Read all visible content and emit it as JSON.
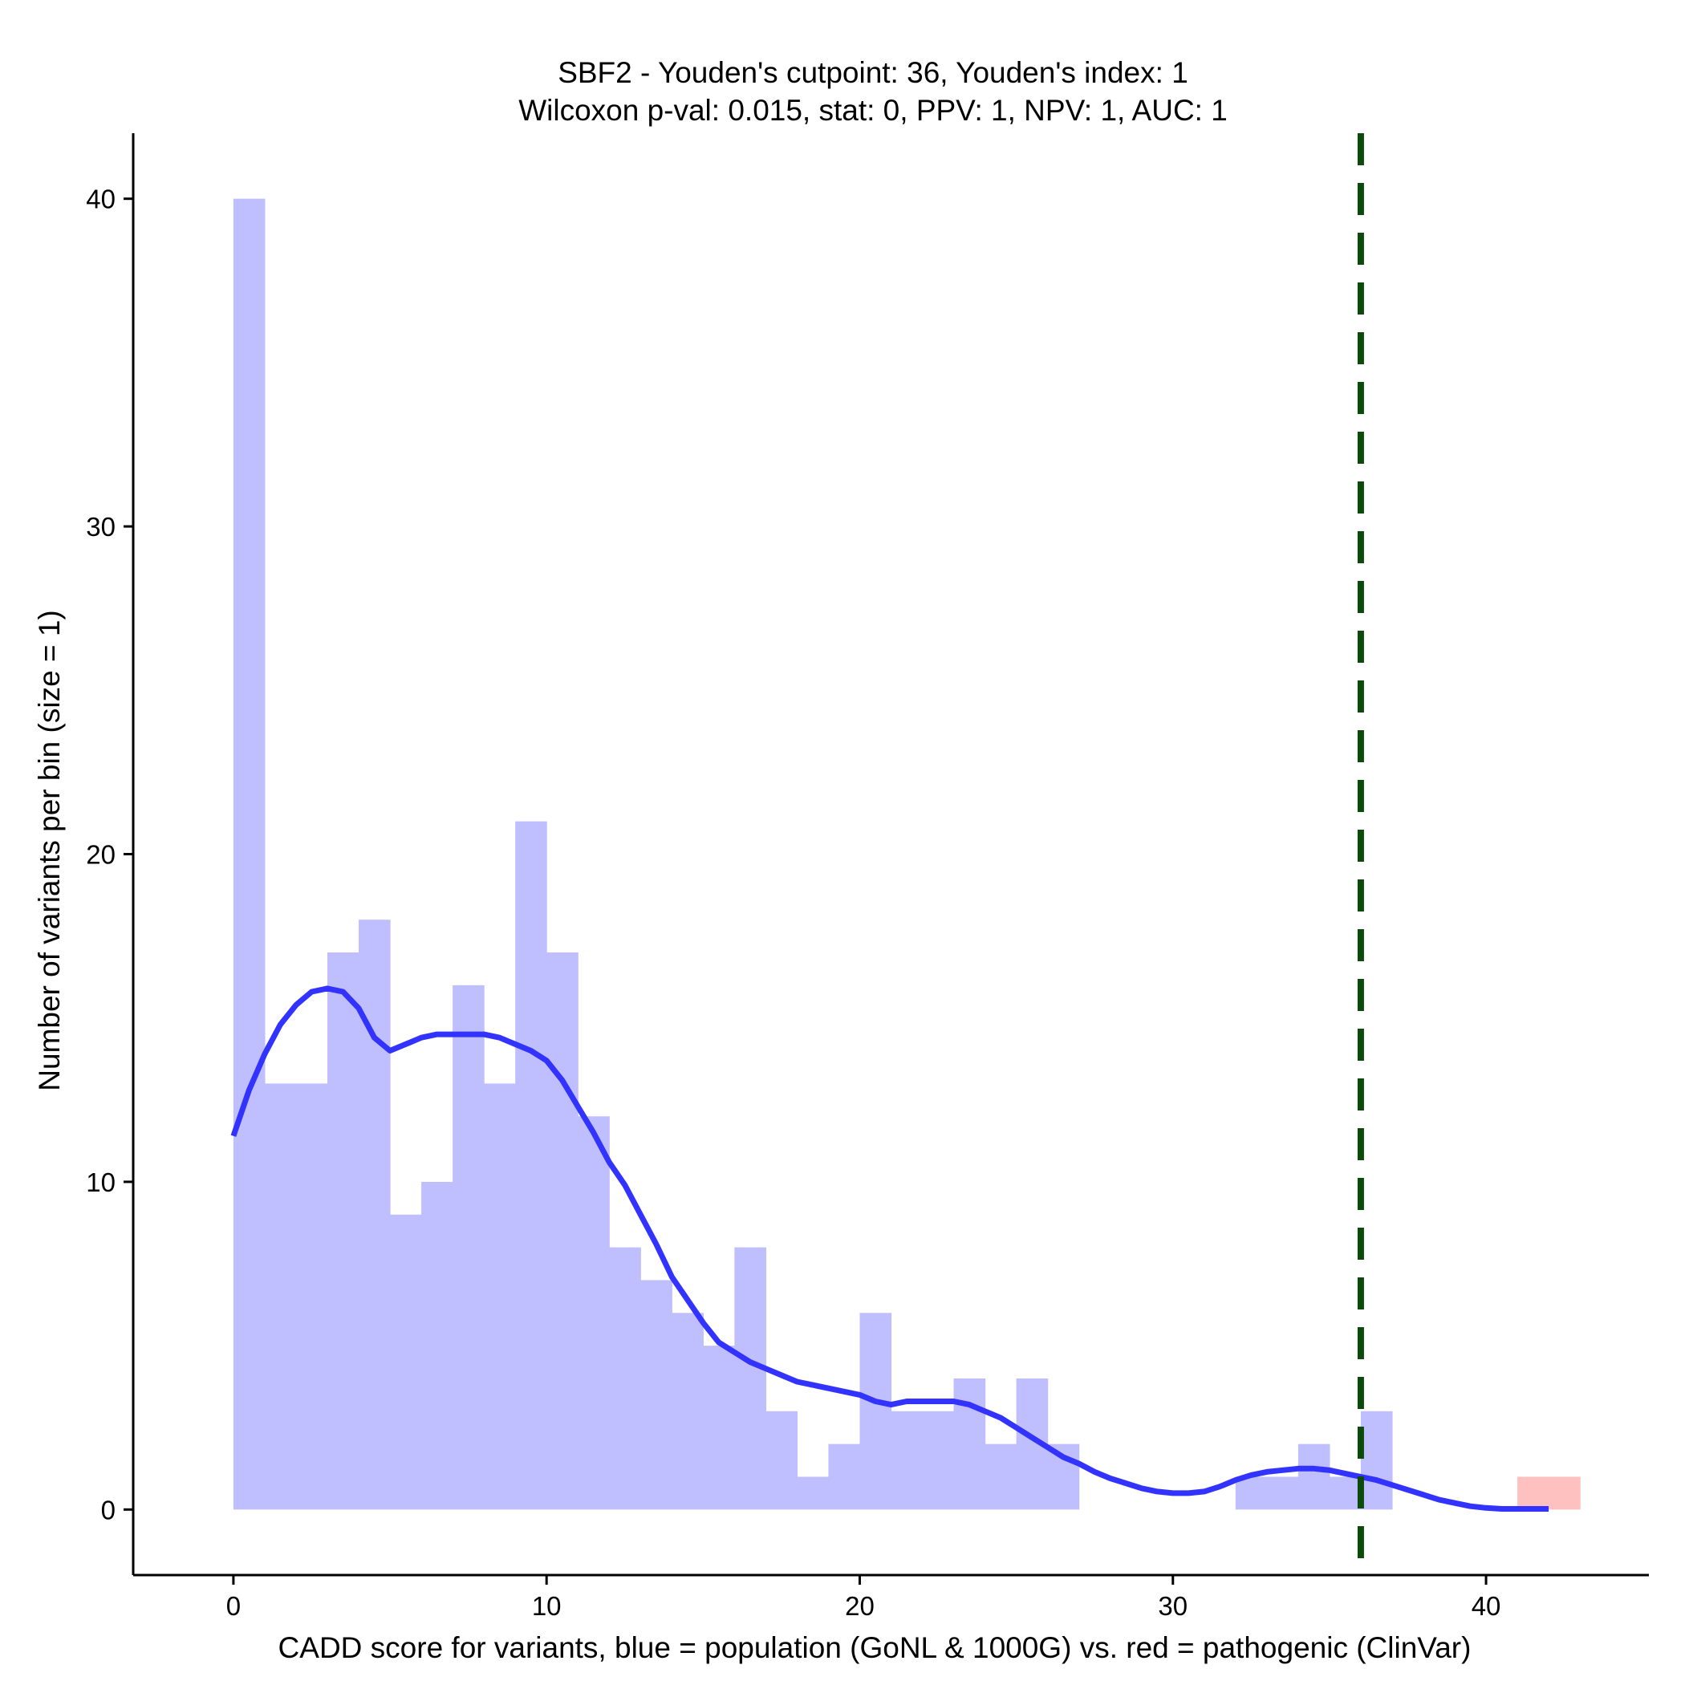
{
  "chart_data": {
    "type": "histogram",
    "title_line1": "SBF2 - Youden's cutpoint: 36, Youden's index: 1",
    "title_line2": "Wilcoxon p-val: 0.015, stat: 0, PPV: 1, NPV: 1, AUC: 1",
    "xlabel": "CADD score for variants, blue = population (GoNL & 1000G) vs. red = pathogenic (ClinVar)",
    "ylabel": "Number of variants per bin (size = 1)",
    "xlim": [
      -3.2,
      45.2
    ],
    "ylim": [
      -2,
      42
    ],
    "x_ticks": [
      0,
      10,
      20,
      30,
      40
    ],
    "y_ticks": [
      0,
      10,
      20,
      30,
      40
    ],
    "bin_size": 1,
    "cutpoint": 36,
    "series": [
      {
        "name": "population (GoNL & 1000G)",
        "color": "#bfbfff",
        "bin_starts": [
          0,
          1,
          2,
          3,
          4,
          5,
          6,
          7,
          8,
          9,
          10,
          11,
          12,
          13,
          14,
          15,
          16,
          17,
          18,
          19,
          20,
          21,
          22,
          23,
          24,
          25,
          26,
          27,
          28,
          29,
          30,
          31,
          32,
          33,
          34,
          35,
          36,
          37
        ],
        "values": [
          40,
          13,
          13,
          17,
          18,
          9,
          10,
          16,
          13,
          21,
          17,
          12,
          8,
          7,
          6,
          5,
          8,
          3,
          1,
          2,
          6,
          3,
          3,
          4,
          2,
          4,
          2,
          0,
          0,
          0,
          0,
          0,
          1,
          1,
          2,
          1,
          3,
          0
        ]
      },
      {
        "name": "pathogenic (ClinVar)",
        "color": "#ffc0c0",
        "bin_starts": [
          41,
          42
        ],
        "values": [
          1,
          1
        ]
      }
    ],
    "density": {
      "color": "#3333ff",
      "x": [
        0,
        0.5,
        1,
        1.5,
        2,
        2.5,
        3,
        3.5,
        4,
        4.5,
        5,
        5.5,
        6,
        6.5,
        7,
        7.5,
        8,
        8.5,
        9,
        9.5,
        10,
        10.5,
        11,
        11.5,
        12,
        12.5,
        13,
        13.5,
        14,
        14.5,
        15,
        15.5,
        16,
        16.5,
        17,
        17.5,
        18,
        18.5,
        19,
        19.5,
        20,
        20.5,
        21,
        21.5,
        22,
        22.5,
        23,
        23.5,
        24,
        24.5,
        25,
        25.5,
        26,
        26.5,
        27,
        27.5,
        28,
        28.5,
        29,
        29.5,
        30,
        30.5,
        31,
        31.5,
        32,
        32.5,
        33,
        33.5,
        34,
        34.5,
        35,
        35.5,
        36,
        36.5,
        37,
        37.5,
        38,
        38.5,
        39,
        39.5,
        40,
        40.5,
        41,
        41.5,
        42
      ],
      "y": [
        11.4,
        12.8,
        13.9,
        14.8,
        15.4,
        15.8,
        15.9,
        15.8,
        15.3,
        14.4,
        14.0,
        14.2,
        14.4,
        14.5,
        14.5,
        14.5,
        14.5,
        14.4,
        14.2,
        14.0,
        13.7,
        13.1,
        12.3,
        11.5,
        10.6,
        9.9,
        9.0,
        8.1,
        7.1,
        6.4,
        5.7,
        5.1,
        4.8,
        4.5,
        4.3,
        4.1,
        3.9,
        3.8,
        3.7,
        3.6,
        3.5,
        3.3,
        3.2,
        3.3,
        3.3,
        3.3,
        3.3,
        3.2,
        3.0,
        2.8,
        2.5,
        2.2,
        1.9,
        1.6,
        1.4,
        1.15,
        0.95,
        0.8,
        0.65,
        0.55,
        0.5,
        0.5,
        0.55,
        0.7,
        0.9,
        1.05,
        1.15,
        1.2,
        1.25,
        1.25,
        1.2,
        1.1,
        1.0,
        0.9,
        0.75,
        0.6,
        0.45,
        0.3,
        0.2,
        0.1,
        0.05,
        0.02,
        0.02,
        0.02,
        0.02
      ]
    }
  }
}
